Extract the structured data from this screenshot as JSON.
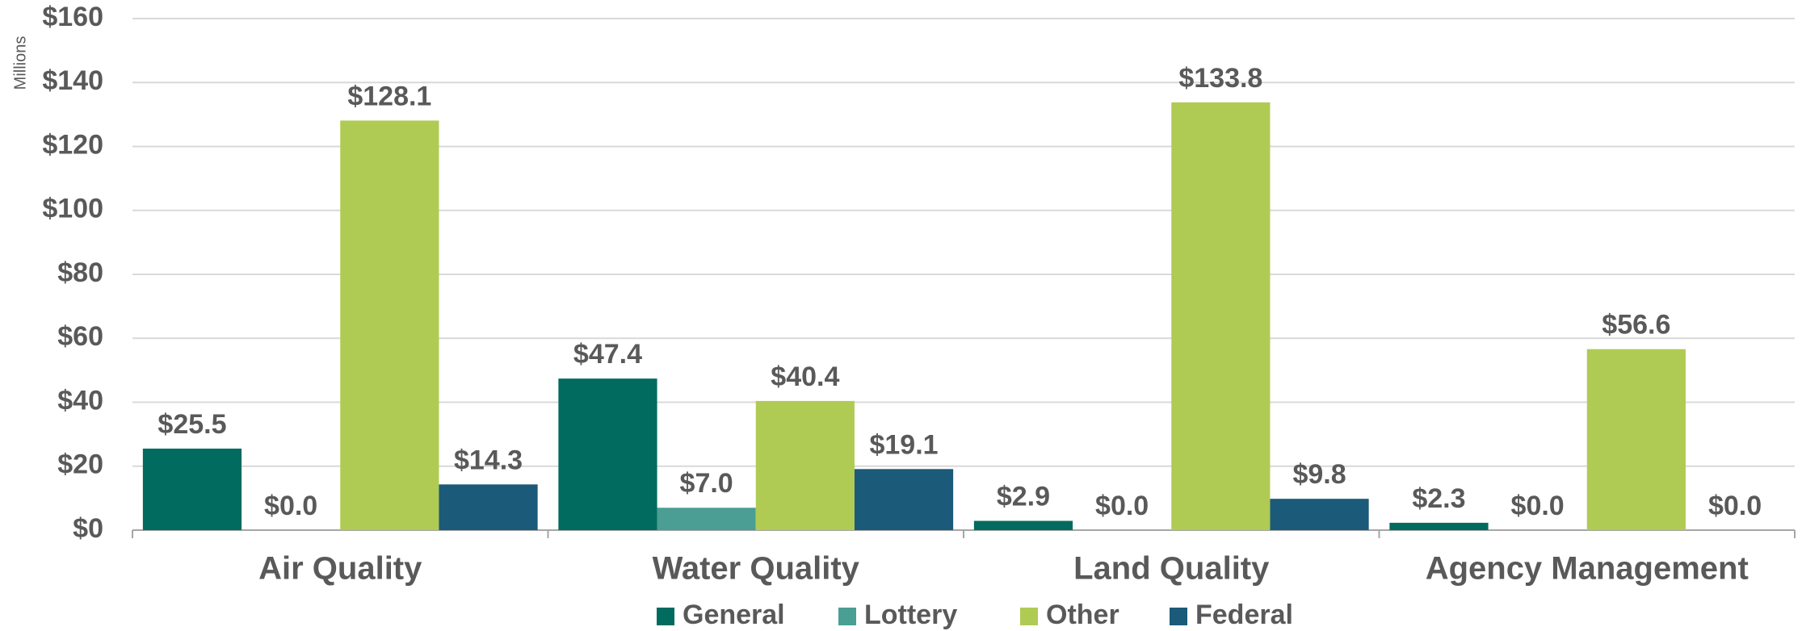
{
  "chart_data": {
    "type": "bar",
    "y_label": "Millions",
    "categories": [
      "Air Quality",
      "Water Quality",
      "Land Quality",
      "Agency Management"
    ],
    "series": [
      {
        "name": "General",
        "color": "#006b5e",
        "values": [
          25.5,
          47.4,
          2.9,
          2.3
        ],
        "value_labels": [
          "$25.5",
          "$47.4",
          "$2.9",
          "$2.3"
        ]
      },
      {
        "name": "Lottery",
        "color": "#4a9e94",
        "values": [
          0.0,
          7.0,
          0.0,
          0.0
        ],
        "value_labels": [
          "$0.0",
          "$7.0",
          "$0.0",
          "$0.0"
        ]
      },
      {
        "name": "Other",
        "color": "#b0cb54",
        "values": [
          128.1,
          40.4,
          133.8,
          56.6
        ],
        "value_labels": [
          "$128.1",
          "$40.4",
          "$133.8",
          "$56.6"
        ]
      },
      {
        "name": "Federal",
        "color": "#1b5a78",
        "values": [
          14.3,
          19.1,
          9.8,
          0.0
        ],
        "value_labels": [
          "$14.3",
          "$19.1",
          "$9.8",
          "$0.0"
        ]
      }
    ],
    "ylim": [
      0,
      160
    ],
    "yticks": [
      {
        "value": 0,
        "label": "$0"
      },
      {
        "value": 20,
        "label": "$20"
      },
      {
        "value": 40,
        "label": "$40"
      },
      {
        "value": 60,
        "label": "$60"
      },
      {
        "value": 80,
        "label": "$80"
      },
      {
        "value": 100,
        "label": "$100"
      },
      {
        "value": 120,
        "label": "$120"
      },
      {
        "value": 140,
        "label": "$140"
      },
      {
        "value": 160,
        "label": "$160"
      }
    ],
    "grid": true,
    "legend": "bottom"
  }
}
